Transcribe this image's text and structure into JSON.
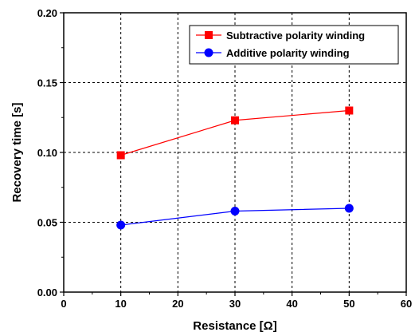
{
  "chart_data": {
    "type": "line",
    "xlabel": "Resistance [Ω]",
    "ylabel": "Recovery time [s]",
    "xlim": [
      0,
      60
    ],
    "ylim": [
      0,
      0.2
    ],
    "x_ticks": [
      "0",
      "10",
      "20",
      "30",
      "40",
      "50",
      "60"
    ],
    "y_ticks": [
      "0.00",
      "0.05",
      "0.10",
      "0.15",
      "0.20"
    ],
    "grid": true,
    "legend_position": "top-right",
    "series": [
      {
        "name": "Subtractive polarity winding",
        "marker": "square",
        "color": "#ff0000",
        "x": [
          10,
          30,
          50
        ],
        "y": [
          0.098,
          0.123,
          0.13
        ]
      },
      {
        "name": "Additive polarity winding",
        "marker": "circle",
        "color": "#0000ff",
        "x": [
          10,
          30,
          50
        ],
        "y": [
          0.048,
          0.058,
          0.06
        ]
      }
    ]
  }
}
